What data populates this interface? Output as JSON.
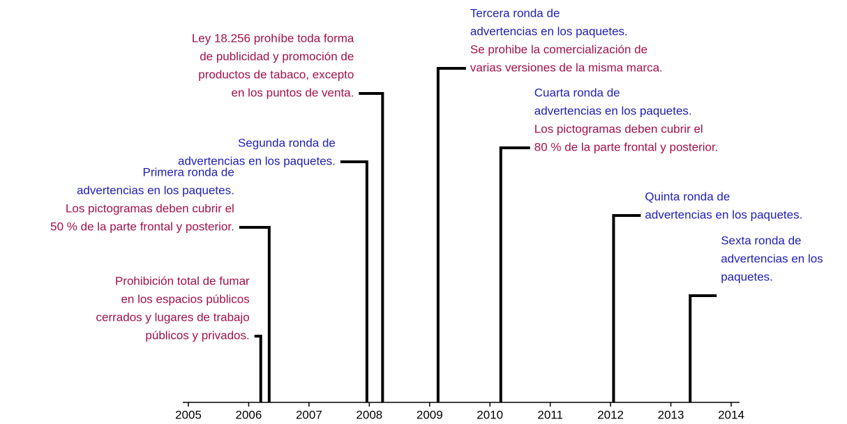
{
  "chart_data": {
    "type": "timeline",
    "xlim": [
      2005,
      2014
    ],
    "xticks": [
      2005,
      2006,
      2007,
      2008,
      2009,
      2010,
      2011,
      2012,
      2013,
      2014
    ],
    "colors": {
      "blue": "#2020b8",
      "red": "#a3104c"
    },
    "events": [
      {
        "x": 2006.2,
        "lines": [
          {
            "text": "Prohibición total de fumar",
            "color": "red"
          },
          {
            "text": "en los espacios públicos",
            "color": "red"
          },
          {
            "text": "cerrados y lugares de trabajo",
            "color": "red"
          },
          {
            "text": "públicos y privados.",
            "color": "red"
          }
        ]
      },
      {
        "x": 2006.34,
        "lines": [
          {
            "text": "Primera ronda de",
            "color": "blue"
          },
          {
            "text": "advertencias en los paquetes.",
            "color": "blue"
          },
          {
            "text": "Los pictogramas deben cubrir el",
            "color": "red"
          },
          {
            "text": "50 % de la parte frontal y posterior.",
            "color": "red"
          }
        ]
      },
      {
        "x": 2007.96,
        "lines": [
          {
            "text": "Segunda ronda de",
            "color": "blue"
          },
          {
            "text": "advertencias en los paquetes.",
            "color": "blue"
          }
        ]
      },
      {
        "x": 2008.22,
        "lines": [
          {
            "text": "Ley 18.256 prohíbe toda forma",
            "color": "red"
          },
          {
            "text": "de publicidad y promoción de",
            "color": "red"
          },
          {
            "text": "productos de tabaco, excepto",
            "color": "red"
          },
          {
            "text": "en los puntos de venta.",
            "color": "red"
          }
        ]
      },
      {
        "x": 2009.14,
        "lines": [
          {
            "text": "Tercera ronda de",
            "color": "blue"
          },
          {
            "text": "advertencias en los paquetes.",
            "color": "blue"
          },
          {
            "text": "Se prohibe la comercialización de",
            "color": "red"
          },
          {
            "text": "varias versiones de la misma marca.",
            "color": "red"
          }
        ]
      },
      {
        "x": 2010.18,
        "lines": [
          {
            "text": "Cuarta ronda de",
            "color": "blue"
          },
          {
            "text": "advertencias en los paquetes.",
            "color": "blue"
          },
          {
            "text": "Los pictogramas deben cubrir el",
            "color": "red"
          },
          {
            "text": "80 % de la parte frontal y posterior.",
            "color": "red"
          }
        ]
      },
      {
        "x": 2012.05,
        "lines": [
          {
            "text": "Quinta ronda de",
            "color": "blue"
          },
          {
            "text": "advertencias en los paquetes.",
            "color": "blue"
          }
        ]
      },
      {
        "x": 2013.32,
        "lines": [
          {
            "text": "Sexta ronda de",
            "color": "blue"
          },
          {
            "text": "advertencias en los",
            "color": "blue"
          },
          {
            "text": "paquetes.",
            "color": "blue"
          }
        ]
      }
    ]
  }
}
